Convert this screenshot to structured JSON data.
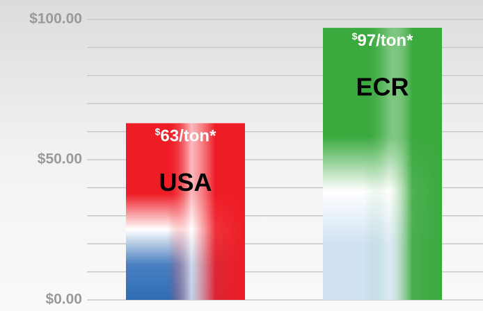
{
  "chart_data": {
    "type": "bar",
    "categories": [
      "USA",
      "ECR"
    ],
    "values": [
      63,
      97
    ],
    "value_labels": [
      "$63/ton*",
      "$97/ton*"
    ],
    "colors": [
      "#ee1c25",
      "#3aa93e"
    ],
    "ylim": [
      0,
      100
    ],
    "yticks": [
      {
        "value": 0,
        "label": "$0.00"
      },
      {
        "value": 50,
        "label": "$50.00"
      },
      {
        "value": 100,
        "label": "$100.00"
      }
    ],
    "yminor": [
      10,
      20,
      30,
      40,
      60,
      70,
      80,
      90
    ],
    "grid": true
  }
}
